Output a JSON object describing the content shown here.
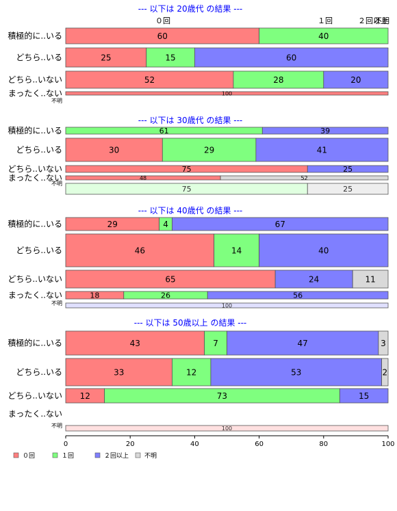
{
  "chart_data": {
    "type": "bar",
    "orientation": "horizontal",
    "stacked": true,
    "xlim": [
      0,
      100
    ],
    "x_ticks": [
      "0",
      "20",
      "40",
      "60",
      "80",
      "100"
    ],
    "top_labels": [
      "０回",
      "１回",
      "２回以上",
      "不明"
    ],
    "legend": {
      "placement": "bottom-left",
      "entries": [
        {
          "label": "０回",
          "color": "#ff7f7f"
        },
        {
          "label": "１回",
          "color": "#7fff7f"
        },
        {
          "label": "２回以上",
          "color": "#7f7fff"
        },
        {
          "label": "不明",
          "color": "#d9d9d9"
        }
      ]
    },
    "panels": [
      {
        "title": "--- 以下は 20歳代 の結果 ---",
        "rows": [
          {
            "label": "積極的に..いる",
            "values": [
              60,
              40,
              0,
              0
            ]
          },
          {
            "label": "どちら..いる",
            "values": [
              25,
              15,
              60,
              0
            ]
          },
          {
            "label": "どちら..いない",
            "values": [
              52,
              28,
              20,
              0
            ]
          },
          {
            "label": "まったく..ない",
            "values": [
              100,
              0,
              0,
              0
            ]
          },
          {
            "label": "不明",
            "values": [
              0,
              0,
              0,
              0
            ]
          }
        ]
      },
      {
        "title": "--- 以下は 30歳代 の結果 ---",
        "rows": [
          {
            "label": "積極的に..いる",
            "values": [
              0,
              61,
              39,
              0
            ]
          },
          {
            "label": "どちら..いる",
            "values": [
              30,
              29,
              41,
              0
            ]
          },
          {
            "label": "どちら..いない",
            "values": [
              75,
              0,
              25,
              0
            ]
          },
          {
            "label": "まったく..ない",
            "values": [
              48,
              0,
              0,
              52
            ]
          },
          {
            "label": "不明",
            "values": [
              0,
              75,
              0,
              25
            ]
          }
        ]
      },
      {
        "title": "--- 以下は 40歳代 の結果 ---",
        "rows": [
          {
            "label": "積極的に..いる",
            "values": [
              29,
              4,
              67,
              0
            ]
          },
          {
            "label": "どちら..いる",
            "values": [
              46,
              14,
              40,
              0
            ]
          },
          {
            "label": "どちら..いない",
            "values": [
              65,
              0,
              24,
              11
            ]
          },
          {
            "label": "まったく..ない",
            "values": [
              18,
              26,
              56,
              0
            ]
          },
          {
            "label": "不明",
            "values": [
              0,
              0,
              100,
              0
            ]
          }
        ]
      },
      {
        "title": "--- 以下は 50歳以上 の結果 ---",
        "rows": [
          {
            "label": "積極的に..いる",
            "values": [
              43,
              7,
              47,
              3
            ]
          },
          {
            "label": "どちら..いる",
            "values": [
              33,
              12,
              53,
              2
            ]
          },
          {
            "label": "どちら..いない",
            "values": [
              12,
              73,
              15,
              0
            ]
          },
          {
            "label": "まったく..ない",
            "values": [
              0,
              0,
              0,
              0
            ]
          },
          {
            "label": "不明",
            "values": [
              100,
              0,
              0,
              0
            ]
          }
        ]
      }
    ]
  }
}
